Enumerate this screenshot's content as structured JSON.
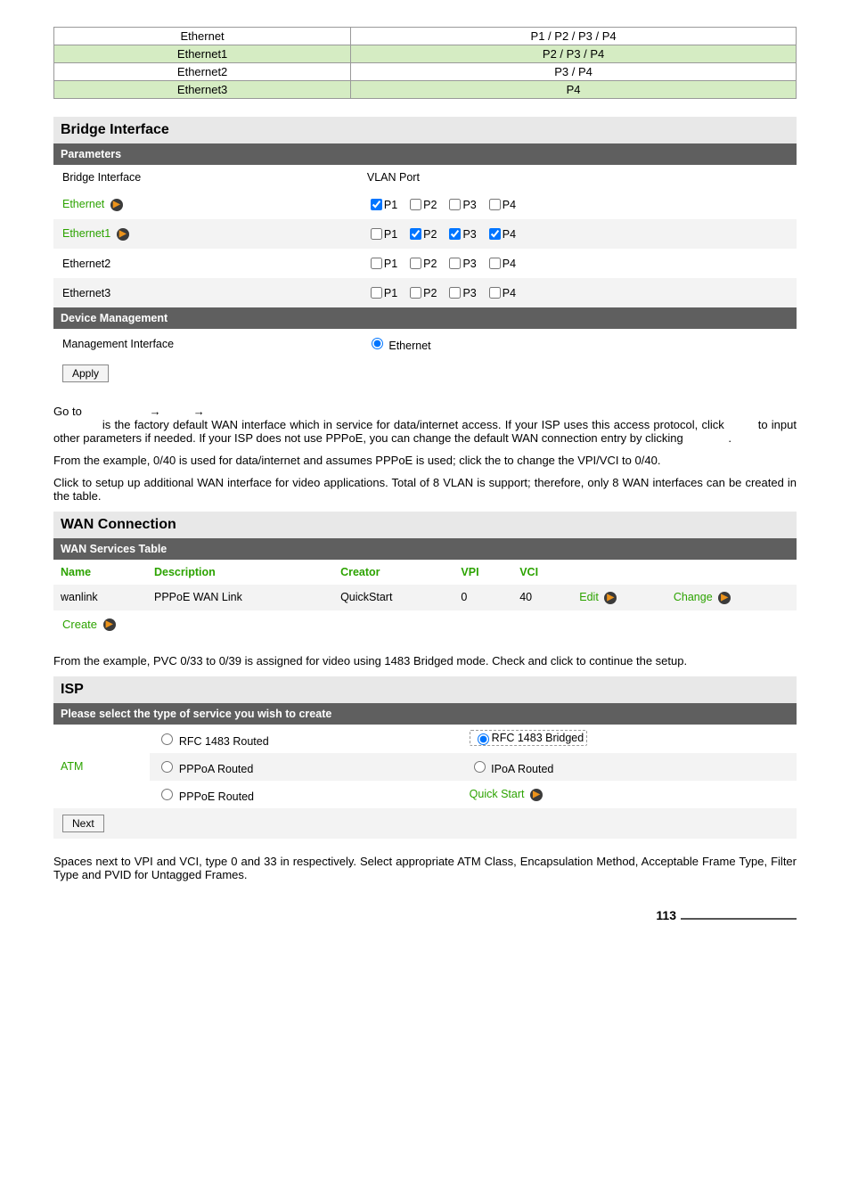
{
  "topTable": {
    "rows": [
      {
        "left": "Ethernet",
        "right": "P1 / P2 / P3 / P4",
        "green": false
      },
      {
        "left": "Ethernet1",
        "right": "P2 / P3 / P4",
        "green": true
      },
      {
        "left": "Ethernet2",
        "right": "P3 / P4",
        "green": false
      },
      {
        "left": "Ethernet3",
        "right": "P4",
        "green": true
      }
    ]
  },
  "bridge": {
    "title": "Bridge Interface",
    "subheader1": "Parameters",
    "colHeaders": {
      "left": "Bridge Interface",
      "right": "VLAN Port"
    },
    "rows": [
      {
        "label": "Ethernet",
        "link": true,
        "ports": [
          {
            "n": "P1",
            "c": true
          },
          {
            "n": "P2",
            "c": false
          },
          {
            "n": "P3",
            "c": false
          },
          {
            "n": "P4",
            "c": false
          }
        ],
        "alt": false
      },
      {
        "label": "Ethernet1",
        "link": true,
        "ports": [
          {
            "n": "P1",
            "c": false
          },
          {
            "n": "P2",
            "c": true
          },
          {
            "n": "P3",
            "c": true
          },
          {
            "n": "P4",
            "c": true
          }
        ],
        "alt": true
      },
      {
        "label": "Ethernet2",
        "link": false,
        "ports": [
          {
            "n": "P1",
            "c": false
          },
          {
            "n": "P2",
            "c": false
          },
          {
            "n": "P3",
            "c": false
          },
          {
            "n": "P4",
            "c": false
          }
        ],
        "alt": false
      },
      {
        "label": "Ethernet3",
        "link": false,
        "ports": [
          {
            "n": "P1",
            "c": false
          },
          {
            "n": "P2",
            "c": false
          },
          {
            "n": "P3",
            "c": false
          },
          {
            "n": "P4",
            "c": false
          }
        ],
        "alt": true
      }
    ],
    "subheader2": "Device Management",
    "mgmtLabel": "Management Interface",
    "mgmtValue": "Ethernet",
    "applyBtn": "Apply"
  },
  "body": {
    "p1a": "Go to ",
    "arrow": "→",
    "p1b": " is the factory default WAN interface which in service for data/internet access. If your ISP uses this access protocol, click ",
    "p1c": " to input other parameters if needed.  If your ISP does not use PPPoE, you can change the default WAN connection entry by clicking ",
    "p1d": ".",
    "p2": "From the example, 0/40 is used for data/internet and assumes PPPoE is used; click the         to change the VPI/VCI to 0/40.",
    "p3": "Click              to setup up additional WAN interface for video applications. Total of 8 VLAN is support; therefore, only 8 WAN interfaces can be created in the table.",
    "p4": "From the example, PVC 0/33 to 0/39 is assigned for video using 1483 Bridged mode.  Check                                  and click           to continue the setup.",
    "p5": "Spaces next to VPI and VCI, type 0 and 33 in respectively. Select appropriate ATM Class, Encapsulation Method, Acceptable Frame Type, Filter Type and PVID for Untagged Frames."
  },
  "wan": {
    "title": "WAN Connection",
    "subheader": "WAN Services Table",
    "headers": {
      "name": "Name",
      "desc": "Description",
      "creator": "Creator",
      "vpi": "VPI",
      "vci": "VCI"
    },
    "row": {
      "name": "wanlink",
      "desc": "PPPoE WAN Link",
      "creator": "QuickStart",
      "vpi": "0",
      "vci": "40",
      "edit": "Edit",
      "change": "Change"
    },
    "create": "Create"
  },
  "isp": {
    "title": "ISP",
    "subheader": "Please select the type of service you wish to create",
    "atm": "ATM",
    "opts": {
      "r1483r": "RFC 1483 Routed",
      "r1483b": "RFC 1483 Bridged",
      "pppoa": "PPPoA Routed",
      "ipoa": "IPoA Routed",
      "pppoe": "PPPoE Routed",
      "qs": "Quick Start"
    },
    "next": "Next"
  },
  "pageNum": "113"
}
